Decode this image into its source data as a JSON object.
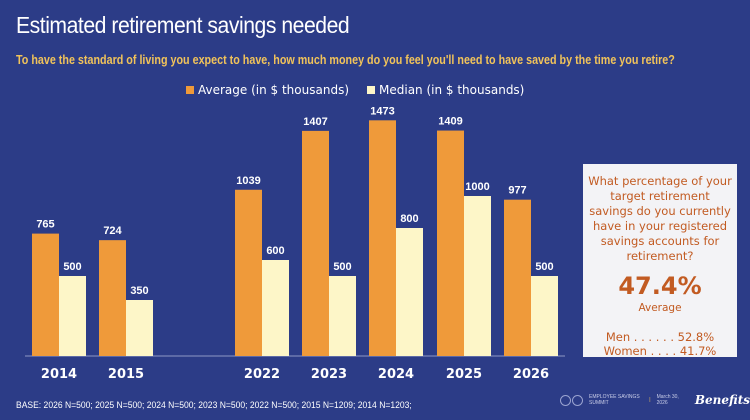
{
  "header": {
    "title": "Estimated retirement savings needed",
    "subtitle": "To have the standard of living you expect to have, how much money do you feel you'll need to have saved by the time you retire?"
  },
  "chart_data": {
    "type": "bar",
    "title": "Estimated retirement savings needed",
    "xlabel": "",
    "ylabel": "",
    "categories": [
      "2014",
      "2015",
      "2022",
      "2023",
      "2024",
      "2025",
      "2026"
    ],
    "series": [
      {
        "name": "Average (in $ thousands)",
        "color": "#ef9a3a",
        "values": [
          765,
          724,
          1039,
          1407,
          1473,
          1409,
          977
        ]
      },
      {
        "name": "Median (in $ thousands)",
        "color": "#fdf6c8",
        "values": [
          500,
          350,
          600,
          500,
          800,
          1000,
          500
        ]
      }
    ],
    "ylim": [
      0,
      1500
    ],
    "grid": false,
    "legend": "top-center",
    "data_labels": true
  },
  "sidebar": {
    "question": "What percentage of your target retirement savings do you currently have in your registered savings accounts for retirement?",
    "value": "47.4%",
    "value_label": "Average",
    "rows": [
      {
        "label": "Men . . . . . . 52.8%"
      },
      {
        "label": "Women . . . . 41.7%"
      }
    ]
  },
  "footer": {
    "base": "BASE: 2026 N=500; 2025 N=500; 2024 N=500; 2023 N=500; 2022 N=500; 2015 N=1209; 2014 N=1203;",
    "event": "EMPLOYEE SAVINGS SUMMIT",
    "date": "March 30, 2026",
    "brand": "Benefits"
  }
}
